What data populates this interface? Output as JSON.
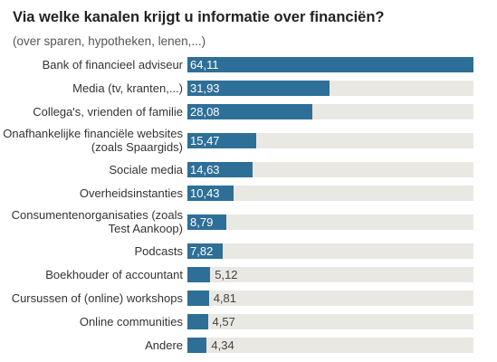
{
  "chart_data": {
    "type": "bar",
    "orientation": "horizontal",
    "title": "Via welke kanalen krijgt u informatie over financiën?",
    "subtitle": "(over sparen, hypotheken, lenen,...)",
    "categories": [
      "Bank of financieel adviseur",
      "Media (tv, kranten,...)",
      "Collega's, vrienden of familie",
      "Onafhankelijke financiële websites\n(zoals Spaargids)",
      "Sociale media",
      "Overheidsinstanties",
      "Consumentenorganisaties (zoals\nTest Aankoop)",
      "Podcasts",
      "Boekhouder of accountant",
      "Cursussen of (online) workshops",
      "Online communities",
      "Andere"
    ],
    "values": [
      64.11,
      31.93,
      28.08,
      15.47,
      14.63,
      10.43,
      8.79,
      7.82,
      5.12,
      4.81,
      4.57,
      4.34
    ],
    "value_labels": [
      "64,11",
      "31,93",
      "28,08",
      "15,47",
      "14,63",
      "10,43",
      "8,79",
      "7,82",
      "5,12",
      "4,81",
      "4,57",
      "4,34"
    ],
    "color": "#2e6f97",
    "track_color": "#eae8e3"
  }
}
